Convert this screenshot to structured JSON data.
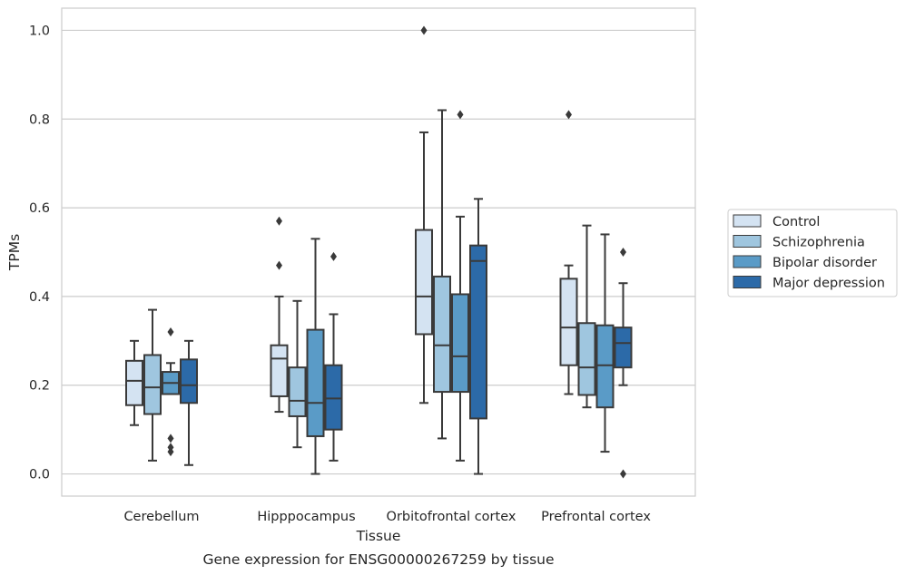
{
  "chart_data": {
    "type": "box",
    "xlabel": "Tissue",
    "ylabel": "TPMs",
    "caption": "Gene expression for ENSG00000267259 by tissue",
    "ylim": [
      -0.05,
      1.05
    ],
    "yticks": [
      "0.0",
      "0.2",
      "0.4",
      "0.6",
      "0.8",
      "1.0"
    ],
    "categories": [
      "Cerebellum",
      "Hipppocampus",
      "Orbitofrontal cortex",
      "Prefrontal cortex"
    ],
    "grid": "horizontal",
    "legend_position": "right",
    "series": [
      {
        "name": "Control",
        "color": "#d4e3f2",
        "boxes": [
          {
            "whislo": 0.11,
            "q1": 0.155,
            "med": 0.21,
            "q3": 0.255,
            "whishi": 0.3,
            "fliers": []
          },
          {
            "whislo": 0.14,
            "q1": 0.175,
            "med": 0.26,
            "q3": 0.29,
            "whishi": 0.4,
            "fliers": [
              0.57,
              0.47
            ]
          },
          {
            "whislo": 0.16,
            "q1": 0.315,
            "med": 0.4,
            "q3": 0.55,
            "whishi": 0.77,
            "fliers": [
              1.0
            ]
          },
          {
            "whislo": 0.18,
            "q1": 0.245,
            "med": 0.33,
            "q3": 0.44,
            "whishi": 0.47,
            "fliers": [
              0.81
            ]
          }
        ]
      },
      {
        "name": "Schizophrenia",
        "color": "#9fc6df",
        "boxes": [
          {
            "whislo": 0.03,
            "q1": 0.135,
            "med": 0.195,
            "q3": 0.268,
            "whishi": 0.37,
            "fliers": []
          },
          {
            "whislo": 0.06,
            "q1": 0.13,
            "med": 0.165,
            "q3": 0.24,
            "whishi": 0.39,
            "fliers": []
          },
          {
            "whislo": 0.08,
            "q1": 0.185,
            "med": 0.29,
            "q3": 0.445,
            "whishi": 0.82,
            "fliers": []
          },
          {
            "whislo": 0.15,
            "q1": 0.178,
            "med": 0.24,
            "q3": 0.34,
            "whishi": 0.56,
            "fliers": []
          }
        ]
      },
      {
        "name": "Bipolar disorder",
        "color": "#5a9bc7",
        "boxes": [
          {
            "whislo": 0.18,
            "q1": 0.18,
            "med": 0.205,
            "q3": 0.23,
            "whishi": 0.25,
            "fliers": [
              0.32,
              0.08,
              0.06,
              0.05
            ]
          },
          {
            "whislo": 0.0,
            "q1": 0.085,
            "med": 0.16,
            "q3": 0.325,
            "whishi": 0.53,
            "fliers": []
          },
          {
            "whislo": 0.03,
            "q1": 0.185,
            "med": 0.265,
            "q3": 0.405,
            "whishi": 0.58,
            "fliers": [
              0.81
            ]
          },
          {
            "whislo": 0.05,
            "q1": 0.15,
            "med": 0.245,
            "q3": 0.335,
            "whishi": 0.54,
            "fliers": []
          }
        ]
      },
      {
        "name": "Major depression",
        "color": "#2c6aa8",
        "boxes": [
          {
            "whislo": 0.02,
            "q1": 0.16,
            "med": 0.2,
            "q3": 0.258,
            "whishi": 0.3,
            "fliers": []
          },
          {
            "whislo": 0.03,
            "q1": 0.1,
            "med": 0.17,
            "q3": 0.245,
            "whishi": 0.36,
            "fliers": [
              0.49
            ]
          },
          {
            "whislo": 0.0,
            "q1": 0.125,
            "med": 0.48,
            "q3": 0.515,
            "whishi": 0.62,
            "fliers": []
          },
          {
            "whislo": 0.2,
            "q1": 0.24,
            "med": 0.295,
            "q3": 0.33,
            "whishi": 0.43,
            "fliers": [
              0.5,
              0.0
            ]
          }
        ]
      }
    ]
  }
}
